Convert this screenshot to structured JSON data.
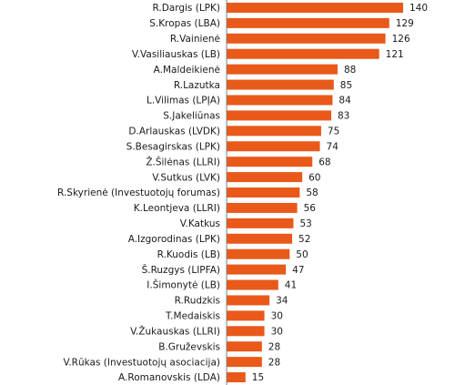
{
  "chart_data": {
    "type": "bar",
    "orientation": "horizontal",
    "title": "",
    "xlabel": "",
    "ylabel": "",
    "xlim": [
      0,
      140
    ],
    "grid": false,
    "legend": "none",
    "bar_color": "#e8591a",
    "categories": [
      "R.Dargis (LPK)",
      "S.Kropas (LBA)",
      "R.Vainienė",
      "V.Vasiliauskas (LB)",
      "A.Maldeikienė",
      "R.Lazutka",
      "L.Vilimas (LPĮA)",
      "S.Jakeliūnas",
      "D.Arlauskas (LVDK)",
      "S.Besagirskas (LPK)",
      "Ž.Šilėnas (LLRI)",
      "V.Sutkus (LVK)",
      "R.Skyrienė (Investuotojų forumas)",
      "K.Leontjeva (LLRI)",
      "V.Katkus",
      "A.Izgorodinas (LPK)",
      "R.Kuodis (LB)",
      "Š.Ruzgys (LIPFA)",
      "I.Šimonytė (LB)",
      "R.Rudzkis",
      "T.Medaiskis",
      "V.Žukauskas (LLRI)",
      "B.Gruževskis",
      "V.Rūkas (Investuotojų asociacija)",
      "A.Romanovskis (LDA)"
    ],
    "values": [
      140,
      129,
      126,
      121,
      88,
      85,
      84,
      83,
      75,
      74,
      68,
      60,
      58,
      56,
      53,
      52,
      50,
      47,
      41,
      34,
      30,
      30,
      28,
      28,
      15
    ]
  }
}
